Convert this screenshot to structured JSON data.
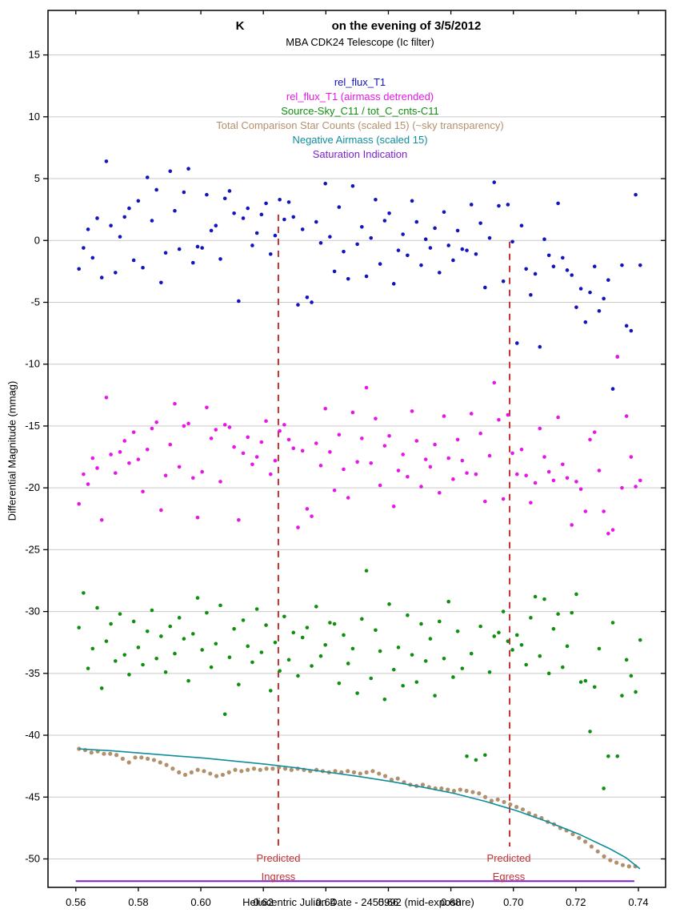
{
  "chart_data": {
    "type": "scatter",
    "title_left": "K",
    "title_right": "on the evening of 3/5/2012",
    "subtitle": "MBA CDK24 Telescope (Ic filter)",
    "xlabel": "Heliocentric Julian Date - 2455992 (mid-exposure)",
    "ylabel": "Differential Magnitude (mmag)",
    "axes": {
      "x": [
        0.5511,
        0.7487
      ],
      "y": [
        -52.3,
        18.6
      ],
      "grid": "horizontal-only",
      "grid_color": "#c9c9c9",
      "frame_color": "#000000"
    },
    "x_ticks": [
      0.56,
      0.58,
      0.6,
      0.62,
      0.64,
      0.66,
      0.68,
      0.7,
      0.72,
      0.74
    ],
    "x_tick_labels": [
      "0.56",
      "0.58",
      "0.60",
      "0.62",
      "0.64",
      "0.66",
      "0.68",
      "0.70",
      "0.72",
      "0.74"
    ],
    "y_ticks": [
      15,
      10,
      5,
      0,
      -5,
      -10,
      -15,
      -20,
      -25,
      -30,
      -35,
      -40,
      -45,
      -50
    ],
    "annotations": [
      {
        "name": "predicted-ingress",
        "x": 0.6248,
        "y_from": 2.1,
        "y_to": -49.0,
        "color": "#c13232",
        "label_line1": "Predicted",
        "label_line2": "Ingress"
      },
      {
        "name": "predicted-egress",
        "x": 0.6988,
        "y_from": -0.1,
        "y_to": -49.0,
        "color": "#c13232",
        "label_line1": "Predicted",
        "label_line2": "Egress"
      }
    ],
    "series": [
      {
        "name": "rel_flux_T1",
        "color": "#1414be",
        "style": "dots",
        "x_start": 0.561,
        "x_step": 0.00146,
        "y": [
          -2.3,
          -0.6,
          0.9,
          -1.4,
          1.8,
          -3.0,
          6.4,
          1.2,
          -2.6,
          0.3,
          1.9,
          2.6,
          -1.6,
          3.2,
          -2.2,
          5.1,
          1.6,
          4.1,
          -3.4,
          -1.0,
          5.6,
          2.4,
          -0.7,
          3.9,
          5.8,
          -1.8,
          -0.5,
          -0.6,
          3.7,
          0.8,
          1.2,
          -1.5,
          3.4,
          4.0,
          2.2,
          -4.9,
          1.8,
          2.6,
          -0.4,
          0.6,
          2.1,
          3.0,
          -1.1,
          0.4,
          3.3,
          1.7,
          3.1,
          1.9,
          -5.2,
          0.9,
          -4.6,
          -5.0,
          1.5,
          -0.2,
          4.6,
          0.3,
          -2.5,
          2.7,
          -0.9,
          -3.1,
          4.4,
          -0.3,
          1.1,
          -2.9,
          0.2,
          3.3,
          -1.9,
          1.6,
          2.2,
          -3.5,
          -0.8,
          0.5,
          -1.2,
          3.2,
          1.5,
          -2.0,
          0.1,
          -0.6,
          1.0,
          -2.6,
          2.3,
          -0.4,
          -1.6,
          0.8,
          -0.7,
          -0.8,
          2.9,
          -1.1,
          1.4,
          -3.8,
          0.2,
          4.7,
          2.8,
          -3.3,
          2.9,
          -0.1,
          -8.3,
          1.2,
          -2.3,
          -4.4,
          -2.7,
          -8.6,
          0.1,
          -1.2,
          -2.1,
          3.0,
          -1.4,
          -2.4,
          -2.8,
          -5.4,
          -3.9,
          -6.6,
          -4.2,
          -2.1,
          -5.7,
          -4.7,
          -3.2,
          -12.0,
          -9.4,
          -2.0,
          -6.9,
          -7.3,
          3.7,
          -2.0
        ]
      },
      {
        "name": "rel_flux_T1 (airmass detrended)",
        "color": "#e617e6",
        "style": "dots",
        "x_start": 0.561,
        "x_step": 0.00146,
        "y": [
          -21.3,
          -18.9,
          -19.7,
          -17.6,
          -18.4,
          -22.6,
          -12.7,
          -17.3,
          -18.8,
          -17.1,
          -16.2,
          -18.0,
          -15.5,
          -17.7,
          -20.3,
          -16.9,
          -15.2,
          -14.7,
          -21.8,
          -19.0,
          -16.5,
          -13.2,
          -18.3,
          -15.0,
          -14.8,
          -19.2,
          -22.4,
          -18.7,
          -13.5,
          -16.0,
          -15.3,
          -19.5,
          -14.9,
          -15.1,
          -16.7,
          -22.6,
          -17.2,
          -15.9,
          -18.1,
          -17.5,
          -16.3,
          -14.6,
          -18.9,
          -17.8,
          -15.4,
          -14.9,
          -16.1,
          -16.8,
          -23.2,
          -17.0,
          -21.7,
          -22.3,
          -16.4,
          -18.2,
          -13.6,
          -17.1,
          -20.2,
          -15.7,
          -18.5,
          -20.8,
          -13.9,
          -17.9,
          -16.0,
          -11.9,
          -18.0,
          -14.4,
          -19.8,
          -16.6,
          -15.8,
          -21.5,
          -18.6,
          -17.3,
          -19.1,
          -13.8,
          -16.2,
          -19.9,
          -17.7,
          -18.3,
          -16.5,
          -20.4,
          -14.2,
          -17.6,
          -19.3,
          -16.1,
          -17.8,
          -18.8,
          -14.0,
          -18.9,
          -15.6,
          -21.1,
          -17.4,
          -11.5,
          -14.5,
          -20.9,
          -14.1,
          -17.2,
          -18.9,
          -16.9,
          -19.0,
          -21.2,
          -19.6,
          -15.2,
          -17.5,
          -18.7,
          -19.4,
          -14.3,
          -18.1,
          -19.2,
          -23.0,
          -19.5,
          -20.1,
          -21.9,
          -16.1,
          -15.5,
          -18.6,
          -21.9,
          -23.7,
          -23.4,
          -9.4,
          -20.0,
          -14.2,
          -17.5,
          -19.9,
          -19.4
        ]
      },
      {
        "name": "Source-Sky_C11 / tot_C_cnts-C11",
        "color": "#0f8f0f",
        "style": "dots",
        "x_start": 0.561,
        "x_step": 0.00146,
        "y": [
          -31.3,
          -28.5,
          -34.6,
          -33.0,
          -29.7,
          -36.2,
          -32.4,
          -31.0,
          -34.0,
          -30.2,
          -33.5,
          -35.1,
          -30.8,
          -32.9,
          -34.3,
          -31.6,
          -29.9,
          -33.8,
          -32.0,
          -34.9,
          -31.2,
          -33.4,
          -30.5,
          -32.2,
          -35.6,
          -31.8,
          -28.9,
          -33.1,
          -30.1,
          -34.5,
          -32.6,
          -29.5,
          -38.3,
          -33.7,
          -31.4,
          -35.9,
          -30.7,
          -32.8,
          -34.1,
          -29.8,
          -33.3,
          -31.1,
          -36.4,
          -32.5,
          -34.8,
          -30.4,
          -33.9,
          -31.7,
          -35.2,
          -32.1,
          -31.3,
          -34.4,
          -29.6,
          -33.6,
          -32.7,
          -30.9,
          -31.0,
          -35.8,
          -31.9,
          -34.2,
          -33.0,
          -36.6,
          -30.6,
          -26.7,
          -35.4,
          -31.5,
          -33.2,
          -37.1,
          -29.4,
          -34.7,
          -32.9,
          -36.0,
          -30.3,
          -33.5,
          -35.7,
          -31.0,
          -34.0,
          -32.2,
          -36.8,
          -30.8,
          -33.8,
          -29.2,
          -35.3,
          -31.6,
          -34.6,
          -41.7,
          -33.4,
          -42.0,
          -31.2,
          -41.6,
          -34.9,
          -32.0,
          -31.7,
          -30.0,
          -32.4,
          -33.1,
          -31.9,
          -32.7,
          -34.3,
          -30.5,
          -28.8,
          -33.6,
          -29.0,
          -35.0,
          -31.4,
          -30.2,
          -34.5,
          -32.8,
          -30.1,
          -28.6,
          -35.7,
          -35.6,
          -39.7,
          -36.1,
          -33.0,
          -44.3,
          -41.7,
          -30.9,
          -41.7,
          -36.8,
          -33.9,
          -35.2,
          -36.5,
          -32.3
        ]
      },
      {
        "name": "Total Comparison Star Counts (scaled 15) (~sky transparency)",
        "color": "#b3906c",
        "style": "dots",
        "x_start": 0.561,
        "x_step": 0.002,
        "y": [
          -41.1,
          -41.2,
          -41.4,
          -41.3,
          -41.5,
          -41.5,
          -41.6,
          -41.9,
          -42.2,
          -41.8,
          -41.8,
          -41.9,
          -42.0,
          -42.2,
          -42.4,
          -42.7,
          -43.0,
          -43.2,
          -43.0,
          -42.8,
          -42.9,
          -43.1,
          -43.3,
          -43.2,
          -43.0,
          -42.8,
          -42.9,
          -42.8,
          -42.7,
          -42.8,
          -42.7,
          -42.7,
          -42.6,
          -42.7,
          -42.8,
          -42.7,
          -42.8,
          -42.9,
          -42.8,
          -42.9,
          -43.0,
          -42.9,
          -43.0,
          -42.9,
          -43.0,
          -43.1,
          -43.0,
          -42.9,
          -43.1,
          -43.3,
          -43.6,
          -43.5,
          -43.8,
          -44.0,
          -44.1,
          -44.0,
          -44.2,
          -44.3,
          -44.3,
          -44.4,
          -44.5,
          -44.4,
          -44.5,
          -44.6,
          -44.7,
          -45.0,
          -45.3,
          -45.2,
          -45.4,
          -45.6,
          -45.8,
          -46.0,
          -46.3,
          -46.5,
          -46.7,
          -47.0,
          -47.2,
          -47.5,
          -47.7,
          -48.0,
          -48.3,
          -48.6,
          -49.0,
          -49.4,
          -49.8,
          -50.1,
          -50.3,
          -50.5,
          -50.6,
          -50.6
        ]
      },
      {
        "name": "Negative Airmass (scaled 15)",
        "color": "#0e8e9c",
        "style": "line",
        "x": [
          0.561,
          0.571,
          0.581,
          0.591,
          0.601,
          0.611,
          0.621,
          0.631,
          0.641,
          0.651,
          0.661,
          0.671,
          0.681,
          0.691,
          0.701,
          0.711,
          0.721,
          0.731,
          0.736,
          0.7405
        ],
        "y": [
          -41.1,
          -41.25,
          -41.45,
          -41.65,
          -41.85,
          -42.1,
          -42.35,
          -42.65,
          -43.0,
          -43.35,
          -43.75,
          -44.2,
          -44.7,
          -45.35,
          -46.1,
          -47.0,
          -48.0,
          -49.2,
          -49.9,
          -50.8
        ]
      },
      {
        "name": "Saturation Indication",
        "color": "#7a22c8",
        "style": "line",
        "x": [
          0.56,
          0.7387
        ],
        "y": [
          -51.8,
          -51.8
        ]
      }
    ]
  }
}
